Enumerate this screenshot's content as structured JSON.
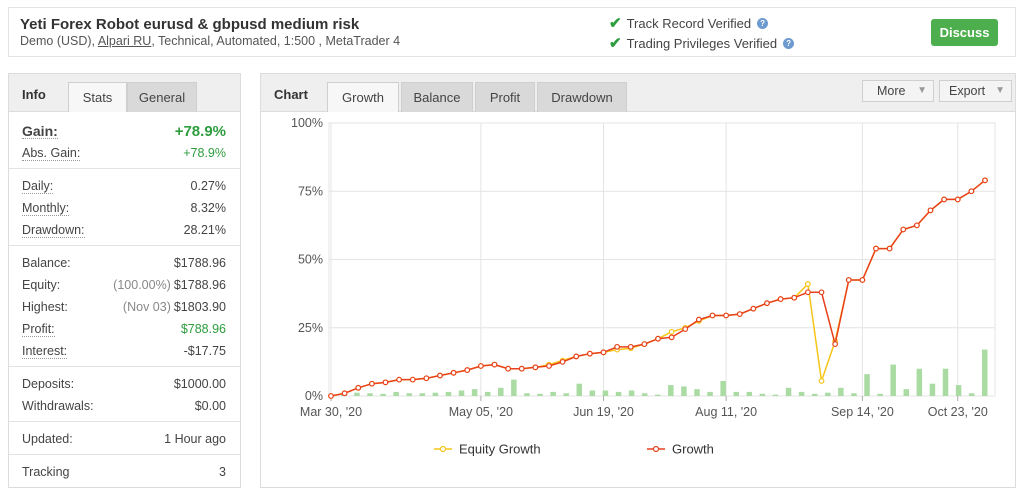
{
  "header": {
    "title": "Yeti Forex Robot eurusd & gbpusd medium risk",
    "subtitle_prefix": "Demo (USD),",
    "broker": "Alpari RU",
    "subtitle_suffix": ", Technical, Automated, 1:500 , MetaTrader 4",
    "track_record": "Track Record Verified",
    "trading_privileges": "Trading Privileges Verified",
    "discuss": "Discuss"
  },
  "info": {
    "title": "Info",
    "tabs": [
      "Stats",
      "General"
    ],
    "gain": {
      "label": "Gain:",
      "value": "+78.9%"
    },
    "abs_gain": {
      "label": "Abs. Gain:",
      "value": "+78.9%"
    },
    "daily": {
      "label": "Daily:",
      "value": "0.27%"
    },
    "monthly": {
      "label": "Monthly:",
      "value": "8.32%"
    },
    "drawdown": {
      "label": "Drawdown:",
      "value": "28.21%"
    },
    "balance": {
      "label": "Balance:",
      "value": "$1788.96"
    },
    "equity": {
      "label": "Equity:",
      "note": "(100.00%)",
      "value": "$1788.96"
    },
    "highest": {
      "label": "Highest:",
      "note": "(Nov 03)",
      "value": "$1803.90"
    },
    "profit": {
      "label": "Profit:",
      "value": "$788.96"
    },
    "interest": {
      "label": "Interest:",
      "value": "-$17.75"
    },
    "deposits": {
      "label": "Deposits:",
      "value": "$1000.00"
    },
    "withdrawals": {
      "label": "Withdrawals:",
      "value": "$0.00"
    },
    "updated": {
      "label": "Updated:",
      "value": "1 Hour ago"
    },
    "tracking": {
      "label": "Tracking",
      "value": "3"
    }
  },
  "chart_panel": {
    "title": "Chart",
    "tabs": [
      "Growth",
      "Balance",
      "Profit",
      "Drawdown"
    ],
    "more": "More",
    "export": "Export"
  },
  "chart_data": {
    "type": "line",
    "x_tick_labels": [
      "Mar 30, '20",
      "May 05, '20",
      "Jun 19, '20",
      "Aug 11, '20",
      "Sep 14, '20",
      "Oct 23, '20"
    ],
    "x_tick_index": [
      0,
      11,
      20,
      29,
      39,
      46
    ],
    "y_tick_labels": [
      "0%",
      "25%",
      "50%",
      "75%",
      "100%"
    ],
    "ylim": [
      0,
      100
    ],
    "grid": true,
    "legend_position": "bottom",
    "colors": {
      "equity": "#f5c518",
      "growth": "#e8401c",
      "bars": "#a9dba3",
      "grid": "#e4e4e4"
    },
    "series": [
      {
        "name": "Equity Growth",
        "values": [
          0,
          1,
          3,
          4.5,
          5,
          6,
          6,
          6.5,
          7.5,
          8.5,
          9.5,
          11,
          11.5,
          10,
          10,
          10.5,
          11.5,
          13,
          14.5,
          15.5,
          16,
          17,
          17.5,
          19,
          21,
          23.5,
          25,
          27.5,
          29.5,
          29.5,
          30,
          32,
          34,
          35.5,
          36,
          41,
          5.5,
          20,
          42.5,
          42.5,
          54,
          54,
          61,
          62.5,
          68,
          72,
          72,
          75,
          79
        ]
      },
      {
        "name": "Growth",
        "values": [
          0,
          1,
          3,
          4.5,
          5,
          6,
          6,
          6.5,
          7.5,
          8.5,
          9.5,
          11,
          11.5,
          10,
          10,
          10.5,
          11,
          12.5,
          14.5,
          15.5,
          16,
          18,
          18,
          19,
          21,
          21.5,
          24.5,
          28,
          29.5,
          29.5,
          30,
          32,
          34,
          35.5,
          36,
          38,
          38,
          19,
          42.5,
          42.5,
          54,
          54,
          61,
          62.5,
          68,
          72,
          72,
          75,
          79
        ]
      },
      {
        "name": "Profit bars",
        "values": [
          0,
          0.5,
          1.2,
          1,
          0.8,
          1.5,
          1,
          1,
          1.2,
          1.5,
          2,
          2.5,
          1.5,
          3,
          6,
          1,
          0.8,
          1.5,
          1,
          4.5,
          2,
          2,
          1.5,
          2,
          1,
          0.5,
          4,
          3.5,
          2.5,
          1.5,
          5.5,
          1.5,
          1.5,
          0.8,
          0.5,
          3,
          1.5,
          0.8,
          1.2,
          3,
          1,
          8,
          0.8,
          11.5,
          2.5,
          10,
          4.5,
          10,
          4,
          1,
          17
        ]
      }
    ]
  }
}
